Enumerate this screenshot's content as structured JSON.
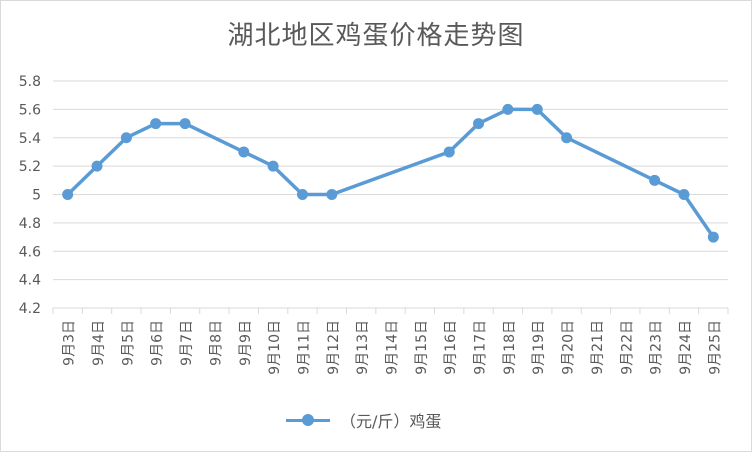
{
  "chart_data": {
    "type": "line",
    "title": "湖北地区鸡蛋价格走势图",
    "xlabel": "",
    "ylabel": "",
    "ylim": [
      4.2,
      5.8
    ],
    "yticks": [
      "4.2",
      "4.4",
      "4.6",
      "4.8",
      "5",
      "5.2",
      "5.4",
      "5.6",
      "5.8"
    ],
    "grid": true,
    "legend_position": "bottom",
    "categories": [
      "9月3日",
      "9月4日",
      "9月5日",
      "9月6日",
      "9月7日",
      "9月8日",
      "9月9日",
      "9月10日",
      "9月11日",
      "9月12日",
      "9月13日",
      "9月14日",
      "9月15日",
      "9月16日",
      "9月17日",
      "9月18日",
      "9月19日",
      "9月20日",
      "9月21日",
      "9月22日",
      "9月23日",
      "9月24日",
      "9月25日"
    ],
    "series": [
      {
        "name": "（元/斤）鸡蛋",
        "color": "#5b9bd5",
        "values": [
          5.0,
          5.2,
          5.4,
          5.5,
          5.5,
          null,
          5.3,
          5.2,
          5.0,
          5.0,
          null,
          null,
          null,
          5.3,
          5.5,
          5.6,
          5.6,
          5.4,
          null,
          null,
          5.1,
          5.0,
          4.7
        ]
      }
    ]
  }
}
